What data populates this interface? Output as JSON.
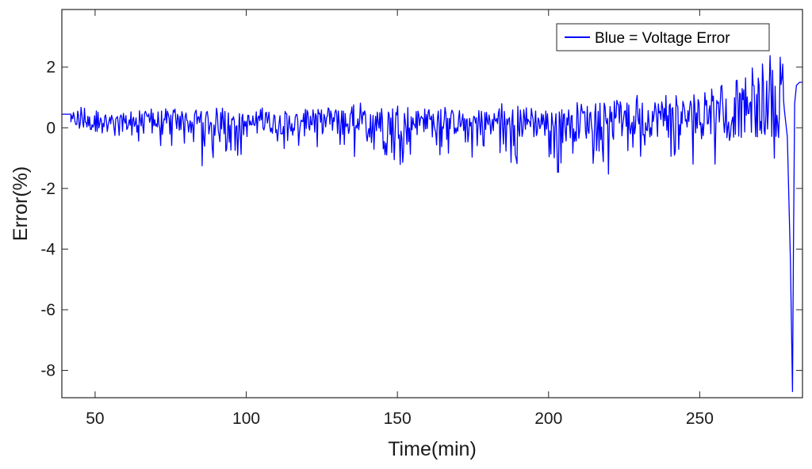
{
  "chart_data": {
    "type": "line",
    "title": "",
    "xlabel": "Time(min)",
    "ylabel": "Error(%)",
    "xlim": [
      39,
      284
    ],
    "ylim": [
      -8.9,
      3.9
    ],
    "xticks": [
      50,
      100,
      150,
      200,
      250
    ],
    "yticks": [
      -8,
      -6,
      -4,
      -2,
      0,
      2
    ],
    "grid": false,
    "legend_position": "top-right",
    "series": [
      {
        "name": "Blue = Voltage Error",
        "color": "#0000ff",
        "envelope_x": [
          39,
          45,
          50,
          55,
          60,
          65,
          70,
          75,
          80,
          85,
          90,
          95,
          100,
          105,
          110,
          115,
          120,
          125,
          130,
          135,
          140,
          145,
          150,
          155,
          160,
          165,
          170,
          175,
          180,
          185,
          190,
          195,
          200,
          205,
          210,
          215,
          220,
          225,
          230,
          235,
          240,
          245,
          250,
          255,
          260,
          265,
          270,
          275,
          278
        ],
        "envelope_max": [
          0.45,
          0.8,
          0.6,
          0.55,
          0.65,
          0.6,
          0.7,
          0.75,
          0.5,
          0.7,
          0.75,
          0.6,
          0.4,
          0.65,
          0.75,
          0.6,
          0.65,
          0.8,
          0.85,
          0.8,
          0.85,
          0.8,
          0.9,
          0.8,
          0.6,
          0.7,
          0.75,
          0.7,
          0.75,
          0.8,
          0.75,
          0.7,
          0.65,
          0.75,
          0.85,
          0.8,
          0.85,
          1.0,
          1.2,
          1.3,
          1.2,
          1.3,
          1.3,
          1.4,
          1.5,
          1.9,
          2.3,
          2.6,
          2.9
        ],
        "envelope_min": [
          0.45,
          -0.2,
          -0.4,
          -0.3,
          -0.4,
          -0.5,
          -0.7,
          -1.0,
          -0.6,
          -1.4,
          -1.0,
          -0.8,
          -1.1,
          -0.9,
          -0.6,
          -0.9,
          -1.0,
          -0.7,
          -0.8,
          -1.1,
          -0.7,
          -1.0,
          -1.4,
          -0.8,
          -1.2,
          -0.9,
          -0.8,
          -1.0,
          -0.9,
          -1.1,
          -1.3,
          -1.2,
          -1.1,
          -1.8,
          -1.5,
          -1.2,
          -1.7,
          -1.2,
          -1.1,
          -1.0,
          -1.2,
          -1.1,
          -1.3,
          -1.2,
          -1.1,
          -1.2,
          -1.1,
          -1.0,
          -0.9
        ],
        "final_segment": {
          "x": [
            278.0,
            279.0,
            280.0,
            280.7,
            281.0,
            281.4,
            282.0,
            283.0,
            284.0
          ],
          "y": [
            0.6,
            -0.3,
            -4.4,
            -8.7,
            -4.0,
            0.8,
            1.4,
            1.5,
            1.5
          ]
        }
      }
    ]
  }
}
